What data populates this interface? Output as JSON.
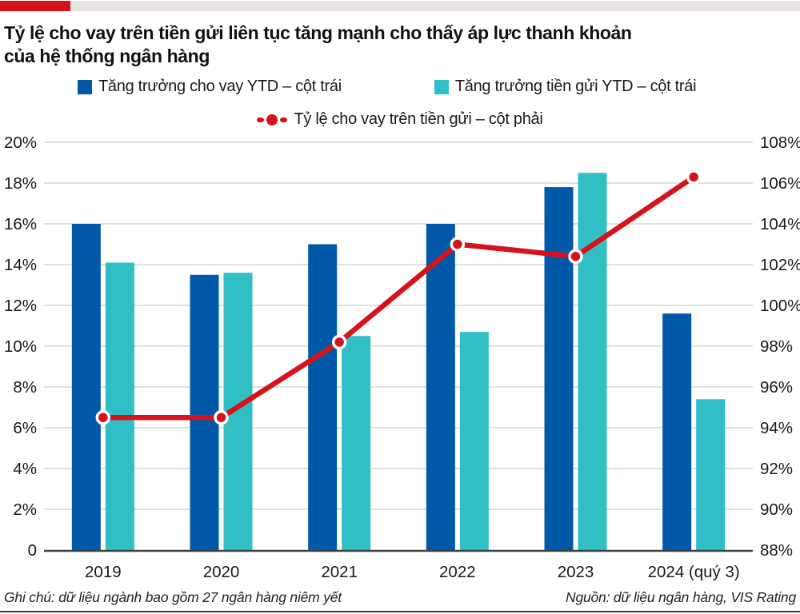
{
  "accent": {
    "red": "#d6121b",
    "gray": "#e7e4e3"
  },
  "title": {
    "line1": "Tỷ lệ cho vay trên tiền gửi liên tục tăng mạnh cho thấy áp lực thanh khoản",
    "line2": "của hệ thống ngân hàng"
  },
  "legend": {
    "loans_label": "Tăng trưởng cho vay YTD – cột trái",
    "deposits_label": "Tăng trưởng tiền gửi YTD – cột trái",
    "ldr_label": "Tỷ lệ cho vay trên tiền gửi – cột phải"
  },
  "chart_data": {
    "type": "combo-bar-line",
    "categories": [
      "2019",
      "2020",
      "2021",
      "2022",
      "2023",
      "2024 (quý 3)"
    ],
    "series": [
      {
        "name": "Tăng trưởng cho vay YTD – cột trái",
        "type": "bar",
        "axis": "left",
        "color": "#0058a8",
        "values": [
          16.0,
          13.5,
          15.0,
          16.0,
          17.8,
          11.6
        ]
      },
      {
        "name": "Tăng trưởng tiền gửi YTD – cột trái",
        "type": "bar",
        "axis": "left",
        "color": "#2fbfc4",
        "values": [
          14.1,
          13.6,
          10.5,
          10.7,
          18.5,
          7.4
        ]
      },
      {
        "name": "Tỷ lệ cho vay trên tiền gửi – cột phải",
        "type": "line",
        "axis": "right",
        "color": "#d6121b",
        "values": [
          94.5,
          94.5,
          98.2,
          103.0,
          102.4,
          106.3
        ]
      }
    ],
    "left_axis": {
      "min": 0,
      "max": 20,
      "step": 2,
      "tick_labels": [
        "20%",
        "18%",
        "16%",
        "14%",
        "12%",
        "10%",
        "8%",
        "6%",
        "4%",
        "2%",
        "0"
      ]
    },
    "right_axis": {
      "min": 88,
      "max": 108,
      "step": 2,
      "tick_labels": [
        "108%",
        "106%",
        "104%",
        "102%",
        "100%",
        "98%",
        "96%",
        "94%",
        "92%",
        "90%",
        "88%"
      ]
    },
    "grid": true,
    "legend_position": "top"
  },
  "footer": {
    "note": "Ghi chú: dữ liệu ngành bao gồm 27 ngân hàng niêm yết",
    "source": "Nguồn: dữ liệu ngân hàng, VIS Rating"
  }
}
